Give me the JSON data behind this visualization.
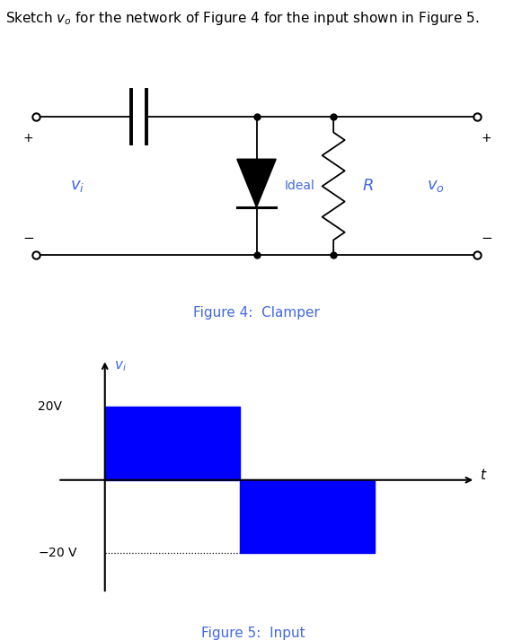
{
  "title_text": "Sketch $v_o$ for the network of Figure 4 for the input shown in Figure 5.",
  "title_color": "#000000",
  "title_fontsize": 11,
  "fig4_caption": "Figure 4:  Clamper",
  "fig5_caption": "Figure 5:  Input",
  "caption_color": "#4169E1",
  "caption_fontsize": 11,
  "label_color": "#4169E1",
  "circuit_label_vi": "$v_i$",
  "circuit_label_vo": "$v_o$",
  "circuit_label_ideal": "Ideal",
  "circuit_label_R": "$R$",
  "waveform_label_vi": "$v_i$",
  "waveform_label_t": "$t$",
  "waveform_label_20V": "20V",
  "waveform_label_neg20V": "$-20$ V",
  "rect_color": "#0000FF",
  "bg_color": "#FFFFFF"
}
